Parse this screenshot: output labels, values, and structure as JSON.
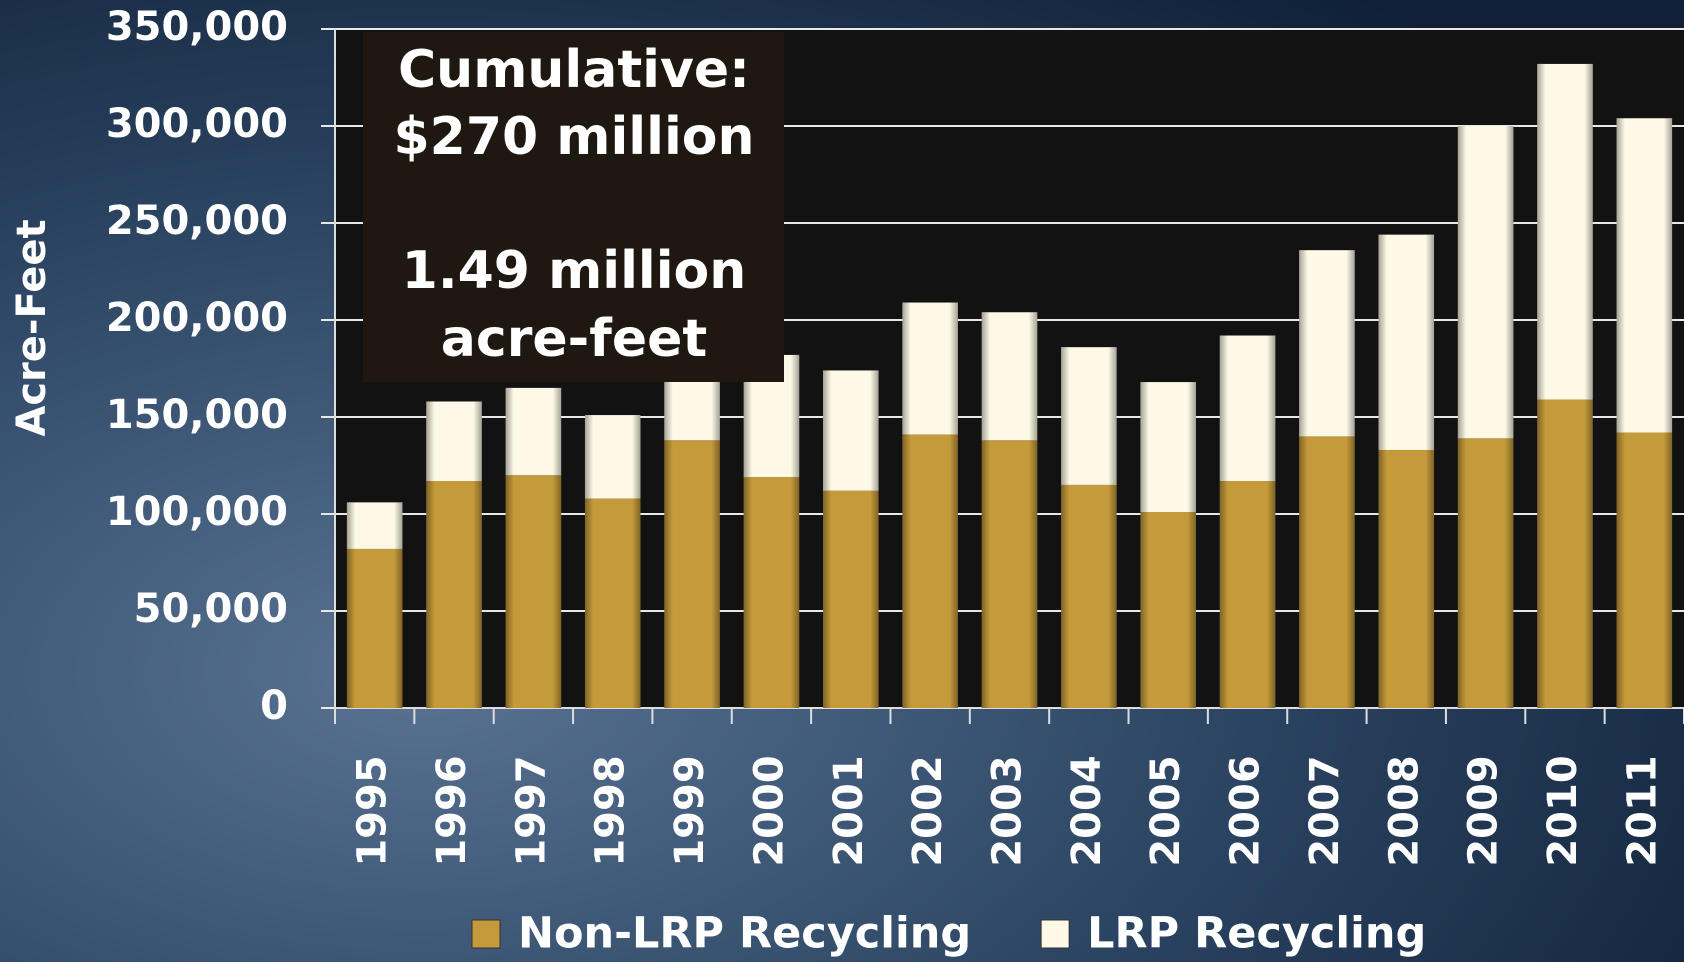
{
  "chart_data": {
    "type": "stacked_bar",
    "y_axis_label": "Acre-Feet",
    "annotation": [
      "Cumulative:",
      "$270 million",
      "1.49 million",
      "acre-feet"
    ],
    "categories": [
      "1995",
      "1996",
      "1997",
      "1998",
      "1999",
      "2000",
      "2001",
      "2002",
      "2003",
      "2004",
      "2005",
      "2006",
      "2007",
      "2008",
      "2009",
      "2010",
      "2011"
    ],
    "series": [
      {
        "name": "Non-LRP Recycling",
        "color": "#c49a3a",
        "values": [
          82000,
          117000,
          120000,
          108000,
          138000,
          119000,
          112000,
          141000,
          138000,
          115000,
          101000,
          117000,
          140000,
          133000,
          139000,
          159000,
          142000
        ]
      },
      {
        "name": "LRP Recycling",
        "color": "#fdf9e6",
        "values": [
          24000,
          41000,
          45000,
          43000,
          42000,
          63000,
          62000,
          68000,
          66000,
          71000,
          67000,
          75000,
          96000,
          111000,
          161000,
          173000,
          162000
        ]
      }
    ],
    "ylim": [
      0,
      350000
    ],
    "yticks": [
      0,
      {
        "value": 50000,
        "label": "50,000"
      },
      {
        "value": 100000,
        "label": "100,000"
      },
      {
        "value": 150000,
        "label": "150,000"
      },
      {
        "value": 200000,
        "label": "200,000"
      },
      {
        "value": 250000,
        "label": "250,000"
      },
      {
        "value": 300000,
        "label": "300,000"
      },
      {
        "value": 350000,
        "label": "350,000"
      }
    ],
    "grid": true
  }
}
